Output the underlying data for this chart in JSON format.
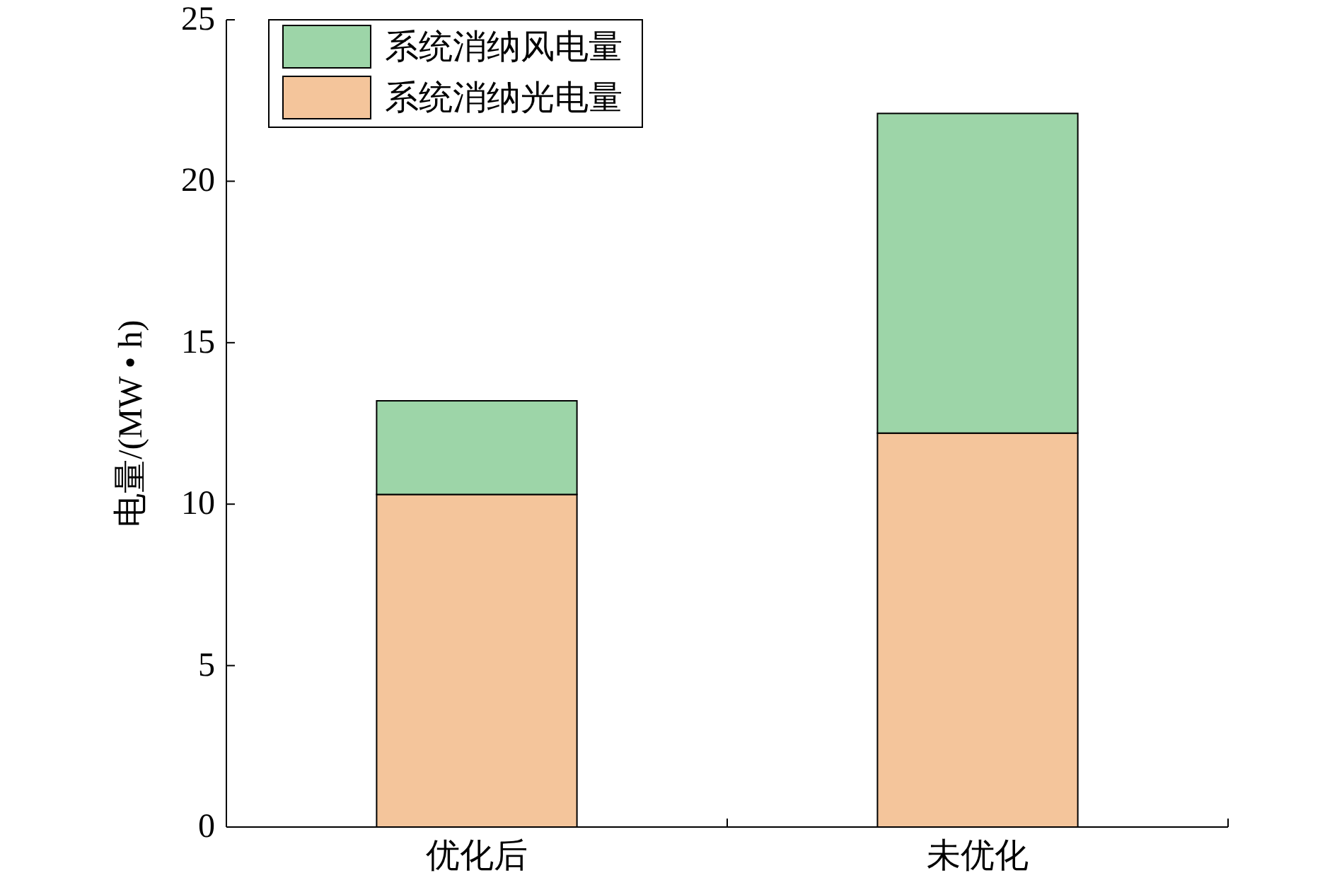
{
  "chart_data": {
    "type": "bar",
    "stacked": true,
    "categories": [
      "优化后",
      "未优化"
    ],
    "series": [
      {
        "name": "系统消纳光电量",
        "color": "#f4c59b",
        "values": [
          10.3,
          12.2
        ]
      },
      {
        "name": "系统消纳风电量",
        "color": "#9dd5a8",
        "values": [
          2.9,
          9.9
        ]
      }
    ],
    "ylabel": "电量/(MW • h)",
    "ylim": [
      0,
      25
    ],
    "yticks": [
      0,
      5,
      10,
      15,
      20,
      25
    ],
    "legend": "top left"
  }
}
